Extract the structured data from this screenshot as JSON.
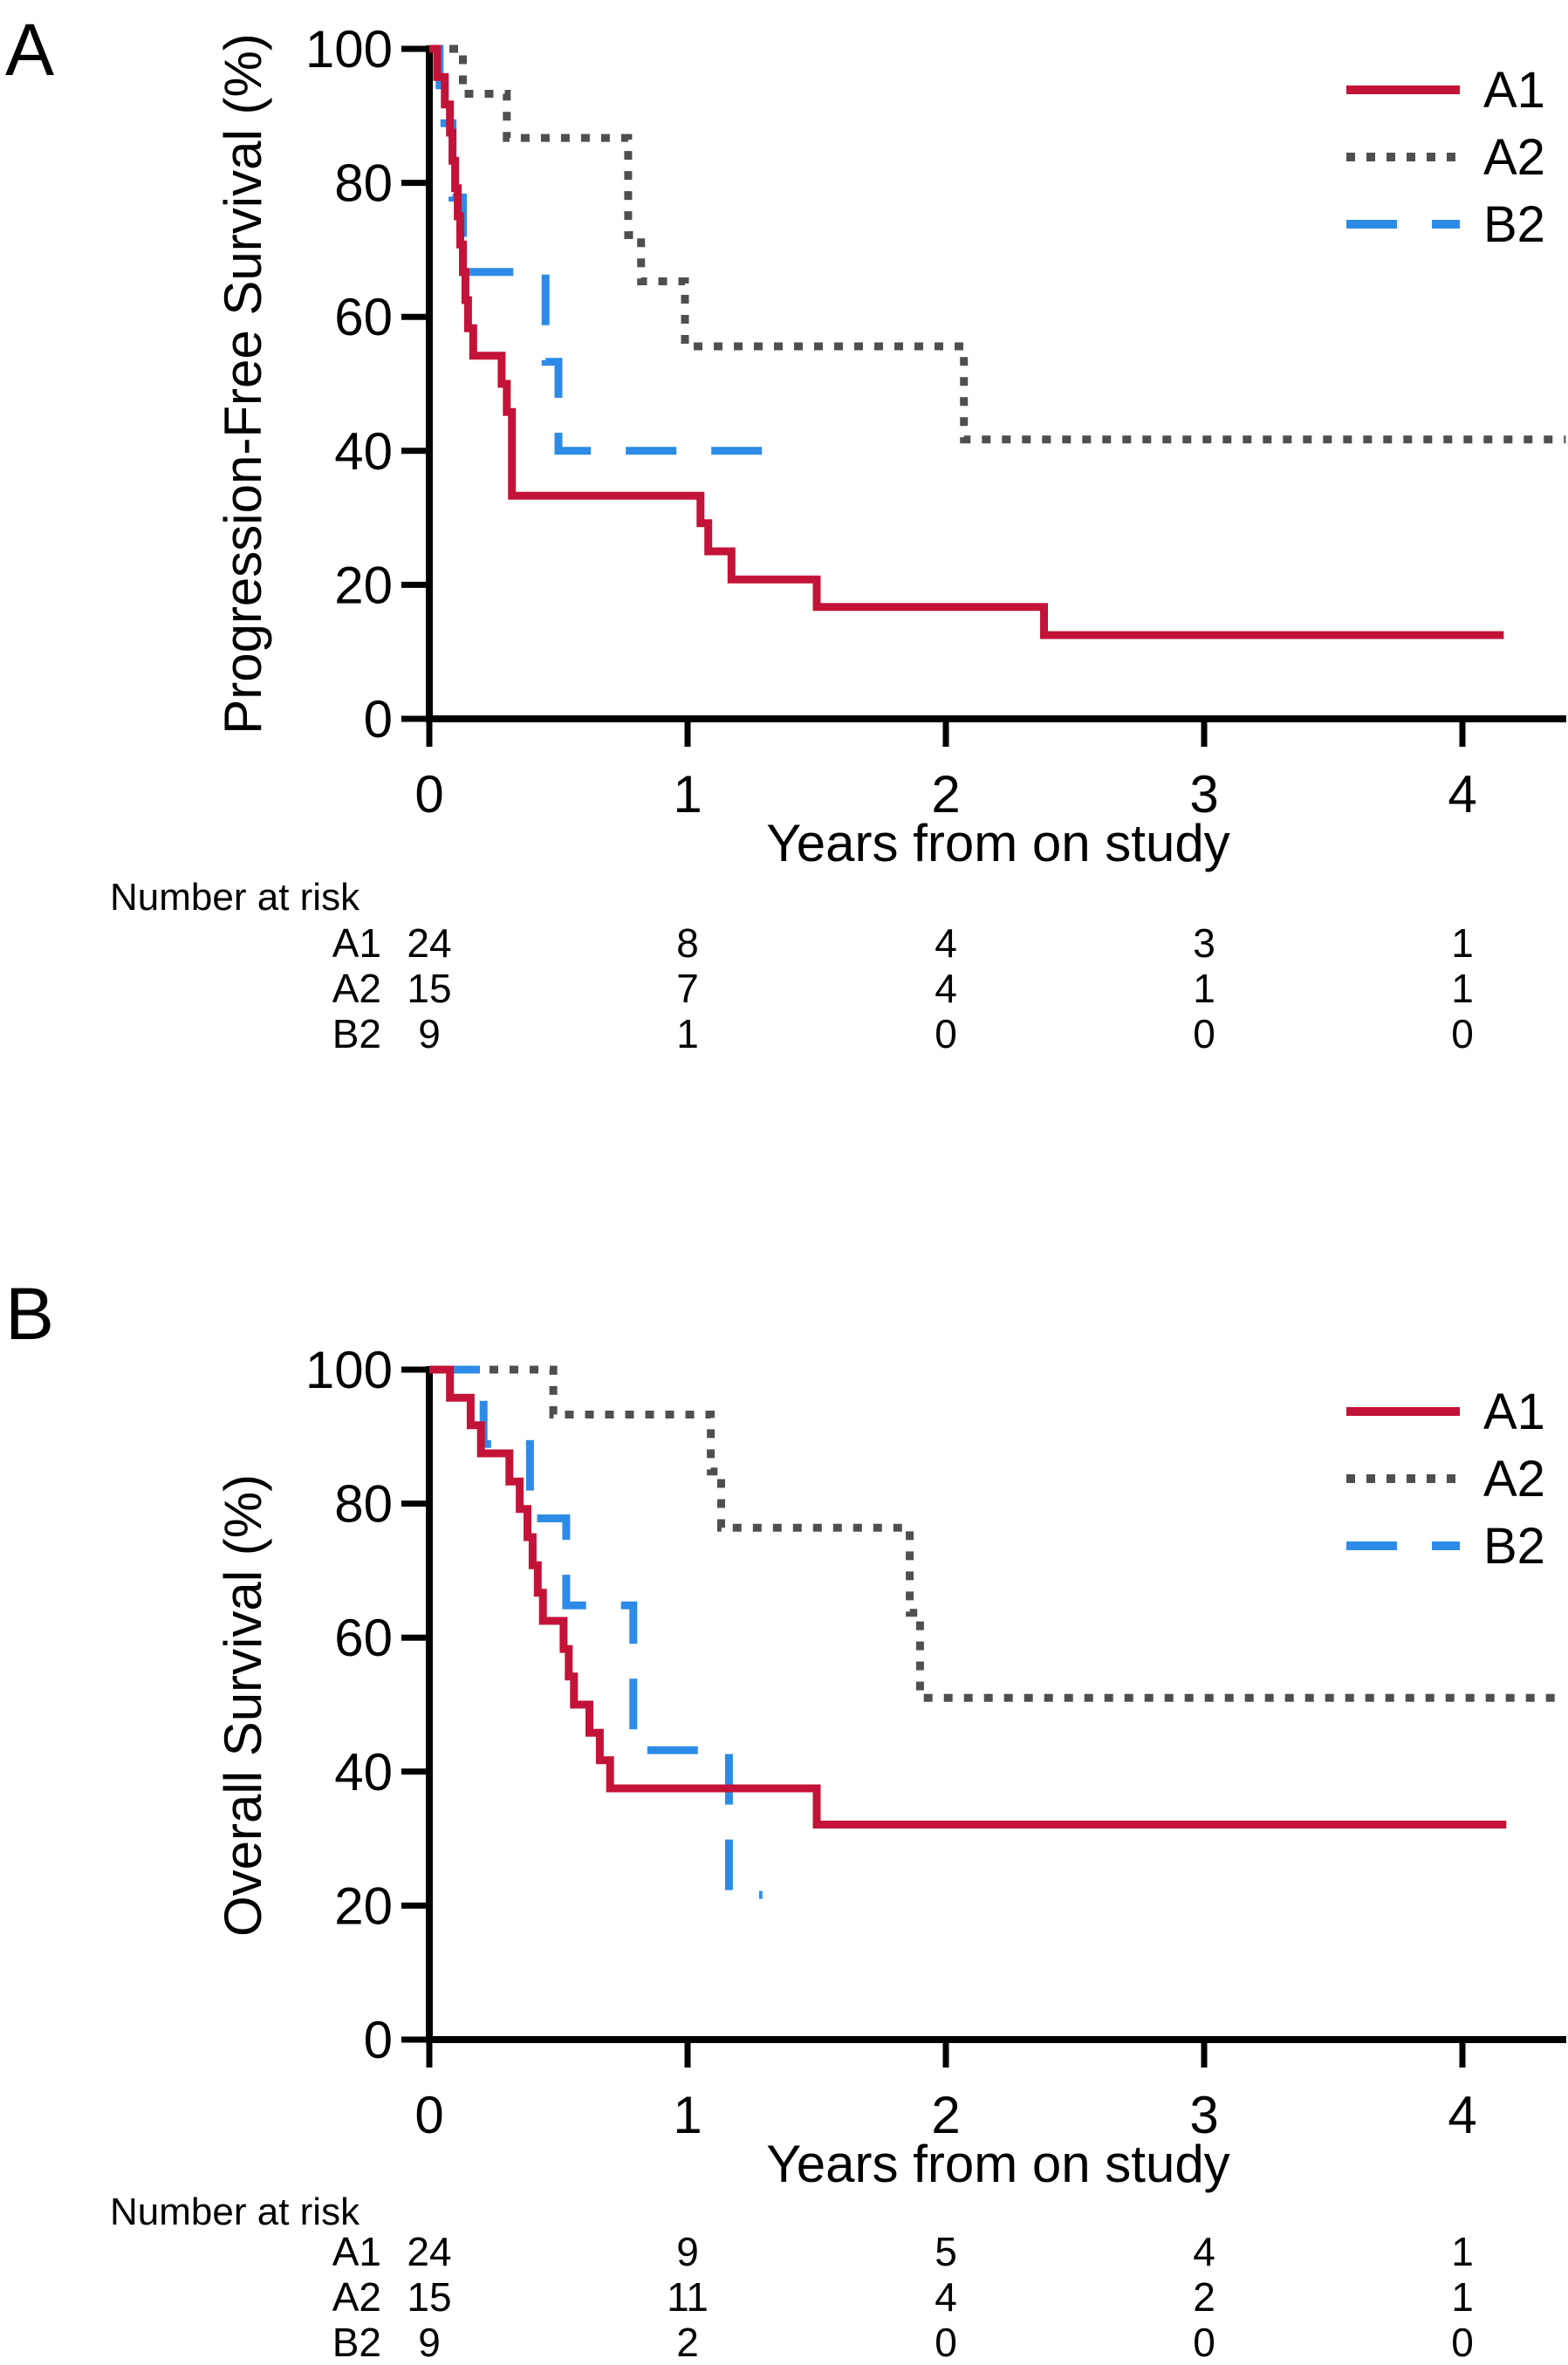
{
  "colors": {
    "axis": "#000000",
    "a1_red": "#C31338",
    "a2_gray": "#4F4F4F",
    "b2_blue": "#2D8BE8"
  },
  "chart_data": [
    {
      "type": "line",
      "subtype": "kaplan-meier-step",
      "panel_label": "A",
      "xlabel": "Years from on study",
      "ylabel": "Progression-Free Survival (%)",
      "xlim": [
        0,
        4.4
      ],
      "ylim": [
        0,
        100
      ],
      "xticks": [
        0,
        1,
        2,
        3,
        4
      ],
      "yticks": [
        100,
        80,
        60,
        40,
        20,
        0
      ],
      "grid": false,
      "legend_position": "top-right",
      "series": [
        {
          "name": "A2",
          "color": "#4F4F4F",
          "line": "dotted",
          "steps": [
            [
              0,
              100
            ],
            [
              0.13,
              93.3
            ],
            [
              0.3,
              86.7
            ],
            [
              0.77,
              72.2
            ],
            [
              0.82,
              65.3
            ],
            [
              0.99,
              55.6
            ],
            [
              2.07,
              41.7
            ]
          ],
          "end_t": 4.4
        },
        {
          "name": "B2",
          "color": "#2D8BE8",
          "line": "dashed",
          "steps": [
            [
              0,
              100
            ],
            [
              0.04,
              88.9
            ],
            [
              0.09,
              77.8
            ],
            [
              0.13,
              66.7
            ],
            [
              0.45,
              53.3
            ],
            [
              0.5,
              40.0
            ]
          ],
          "end_t": 1.3
        },
        {
          "name": "A1",
          "color": "#C31338",
          "line": "solid",
          "steps": [
            [
              0,
              100
            ],
            [
              0.03,
              95.8
            ],
            [
              0.06,
              91.7
            ],
            [
              0.08,
              87.5
            ],
            [
              0.09,
              83.3
            ],
            [
              0.1,
              79.2
            ],
            [
              0.11,
              75.0
            ],
            [
              0.12,
              70.8
            ],
            [
              0.13,
              66.7
            ],
            [
              0.14,
              62.5
            ],
            [
              0.15,
              58.3
            ],
            [
              0.17,
              54.2
            ],
            [
              0.28,
              50.0
            ],
            [
              0.3,
              45.8
            ],
            [
              0.32,
              33.3
            ],
            [
              1.05,
              29.2
            ],
            [
              1.08,
              25.0
            ],
            [
              1.17,
              20.8
            ],
            [
              1.5,
              16.7
            ],
            [
              2.38,
              12.5
            ]
          ],
          "end_t": 4.16
        }
      ],
      "legend_order": [
        "A1",
        "A2",
        "B2"
      ],
      "risk_table": {
        "title": "Number at risk",
        "time_points": [
          0,
          1,
          2,
          3,
          4
        ],
        "rows": [
          {
            "name": "A1",
            "counts": [
              24,
              8,
              4,
              3,
              1
            ]
          },
          {
            "name": "A2",
            "counts": [
              15,
              7,
              4,
              1,
              1
            ]
          },
          {
            "name": "B2",
            "counts": [
              9,
              1,
              0,
              0,
              0
            ]
          }
        ]
      }
    },
    {
      "type": "line",
      "subtype": "kaplan-meier-step",
      "panel_label": "B",
      "xlabel": "Years from on study",
      "ylabel": "Overall Survival (%)",
      "xlim": [
        0,
        4.4
      ],
      "ylim": [
        0,
        100
      ],
      "xticks": [
        0,
        1,
        2,
        3,
        4
      ],
      "yticks": [
        100,
        80,
        60,
        40,
        20,
        0
      ],
      "grid": false,
      "legend_position": "top-right",
      "series": [
        {
          "name": "A2",
          "color": "#4F4F4F",
          "line": "dotted",
          "steps": [
            [
              0,
              100
            ],
            [
              0.48,
              93.3
            ],
            [
              1.09,
              84.8
            ],
            [
              1.13,
              76.4
            ],
            [
              1.86,
              63.7
            ],
            [
              1.9,
              51.0
            ]
          ],
          "end_t": 4.4
        },
        {
          "name": "B2",
          "color": "#2D8BE8",
          "line": "dashed",
          "steps": [
            [
              0,
              100
            ],
            [
              0.21,
              88.9
            ],
            [
              0.39,
              77.8
            ],
            [
              0.53,
              64.8
            ],
            [
              0.79,
              43.2
            ],
            [
              1.16,
              21.6
            ]
          ],
          "end_t": 1.29
        },
        {
          "name": "A1",
          "color": "#C31338",
          "line": "solid",
          "steps": [
            [
              0,
              100
            ],
            [
              0.08,
              95.8
            ],
            [
              0.16,
              91.7
            ],
            [
              0.2,
              87.5
            ],
            [
              0.31,
              83.3
            ],
            [
              0.35,
              79.2
            ],
            [
              0.38,
              75.0
            ],
            [
              0.4,
              70.8
            ],
            [
              0.42,
              66.7
            ],
            [
              0.44,
              62.5
            ],
            [
              0.52,
              58.3
            ],
            [
              0.54,
              54.2
            ],
            [
              0.56,
              50.0
            ],
            [
              0.62,
              45.8
            ],
            [
              0.66,
              41.7
            ],
            [
              0.7,
              37.5
            ],
            [
              1.5,
              32.1
            ]
          ],
          "end_t": 4.17
        }
      ],
      "legend_order": [
        "A1",
        "A2",
        "B2"
      ],
      "risk_table": {
        "title": "Number at risk",
        "time_points": [
          0,
          1,
          2,
          3,
          4
        ],
        "rows": [
          {
            "name": "A1",
            "counts": [
              24,
              9,
              5,
              4,
              1
            ]
          },
          {
            "name": "A2",
            "counts": [
              15,
              11,
              4,
              2,
              1
            ]
          },
          {
            "name": "B2",
            "counts": [
              9,
              2,
              0,
              0,
              0
            ]
          }
        ]
      }
    }
  ]
}
